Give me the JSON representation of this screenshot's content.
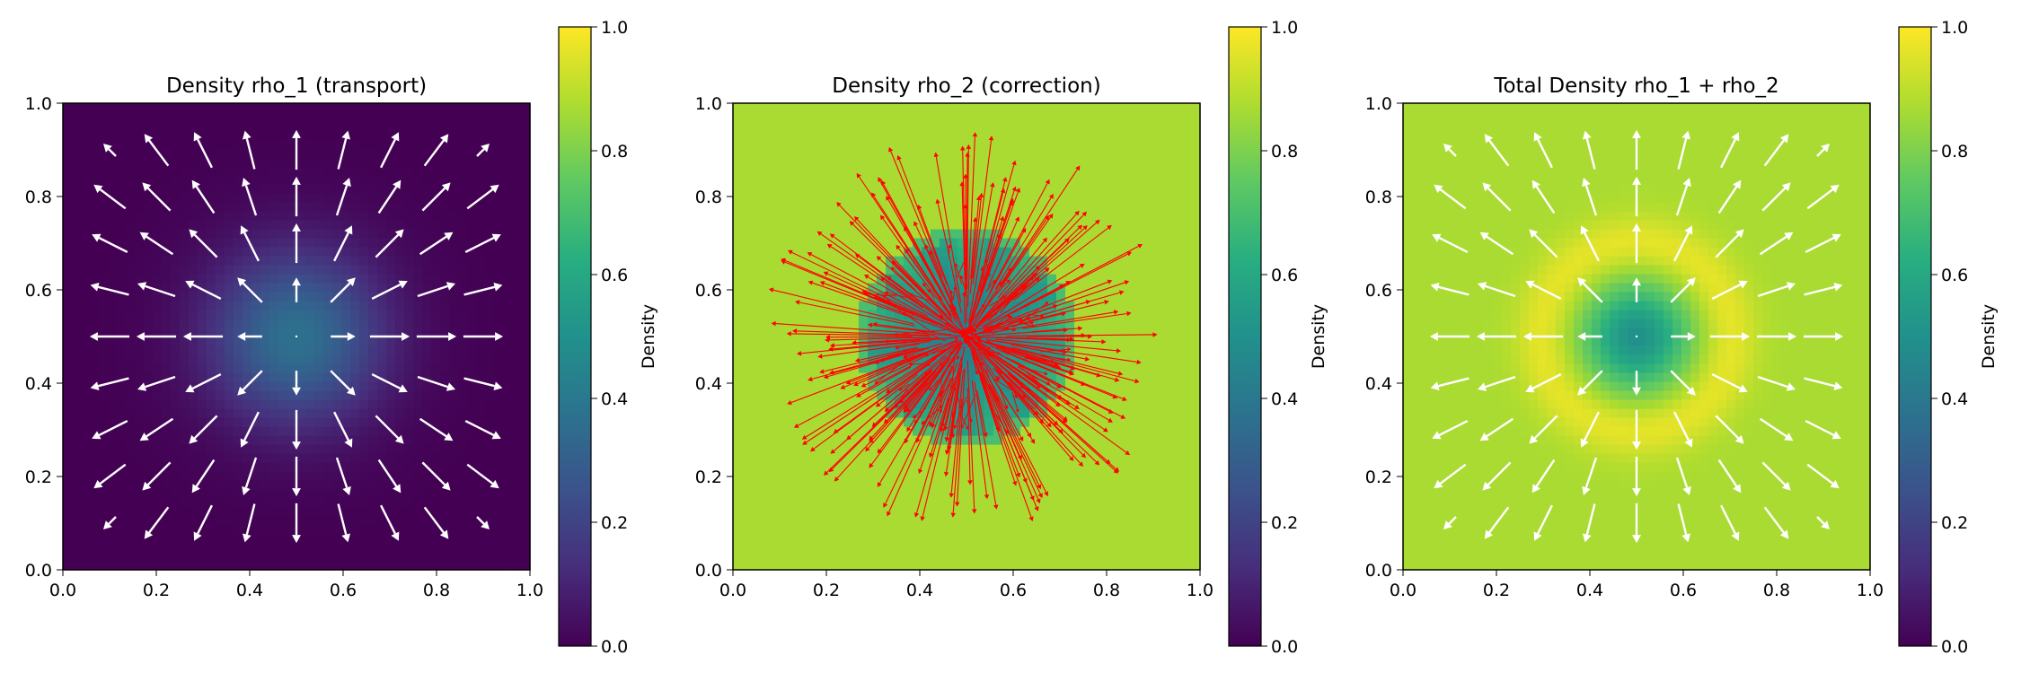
{
  "chart_data": [
    {
      "type": "heatmap+quiver",
      "title": "Density rho_1 (transport)",
      "xlim": [
        0,
        1
      ],
      "ylim": [
        0,
        1
      ],
      "x_ticks": [
        "0.0",
        "0.2",
        "0.4",
        "0.6",
        "0.8",
        "1.0"
      ],
      "y_ticks": [
        "0.0",
        "0.2",
        "0.4",
        "0.6",
        "0.8",
        "1.0"
      ],
      "colorbar": {
        "label": "Density",
        "range": [
          0,
          1
        ],
        "ticks": [
          "0.0",
          "0.2",
          "0.4",
          "0.6",
          "0.8",
          "1.0"
        ]
      },
      "field": {
        "kind": "gaussian_blob",
        "center": [
          0.5,
          0.5
        ],
        "peak": 0.37,
        "background": 0.0,
        "sigma": 0.13
      },
      "arrows": {
        "color": "#ffffff",
        "grid": [
          0.0,
          0.1,
          0.2,
          0.3,
          0.4,
          0.5,
          0.6,
          0.7,
          0.8,
          0.9,
          1.0
        ],
        "direction": "radial outward from (0.5, 0.5)"
      }
    },
    {
      "type": "heatmap+quiver",
      "title": "Density rho_2 (correction)",
      "xlim": [
        0,
        1
      ],
      "ylim": [
        0,
        1
      ],
      "x_ticks": [
        "0.0",
        "0.2",
        "0.4",
        "0.6",
        "0.8",
        "1.0"
      ],
      "y_ticks": [
        "0.0",
        "0.2",
        "0.4",
        "0.6",
        "0.8",
        "1.0"
      ],
      "colorbar": {
        "label": "Density",
        "range": [
          0,
          1
        ],
        "ticks": [
          "0.0",
          "0.2",
          "0.4",
          "0.6",
          "0.8",
          "1.0"
        ]
      },
      "field": {
        "kind": "ring_correction",
        "center": [
          0.5,
          0.5
        ],
        "background": 0.87,
        "ring_radius": 0.22,
        "ring_value": 0.7,
        "inner_min": 0.4
      },
      "arrows": {
        "color": "#ff0000",
        "direction": "dense radial spray from center, radius up to 0.45"
      }
    },
    {
      "type": "heatmap+quiver",
      "title": "Total Density rho_1 + rho_2",
      "xlim": [
        0,
        1
      ],
      "ylim": [
        0,
        1
      ],
      "x_ticks": [
        "0.0",
        "0.2",
        "0.4",
        "0.6",
        "0.8",
        "1.0"
      ],
      "y_ticks": [
        "0.0",
        "0.2",
        "0.4",
        "0.6",
        "0.8",
        "1.0"
      ],
      "colorbar": {
        "label": "Density",
        "range": [
          0,
          1
        ],
        "ticks": [
          "0.0",
          "0.2",
          "0.4",
          "0.6",
          "0.8",
          "1.0"
        ]
      },
      "field": {
        "kind": "annulus",
        "center": [
          0.5,
          0.5
        ],
        "background": 0.87,
        "ring_radius": 0.2,
        "ring_peak": 0.97,
        "center_value": 0.5
      },
      "arrows": {
        "color": "#ffffff",
        "grid": [
          0.0,
          0.1,
          0.2,
          0.3,
          0.4,
          0.5,
          0.6,
          0.7,
          0.8,
          0.9,
          1.0
        ],
        "direction": "radial outward from (0.5, 0.5)"
      }
    }
  ]
}
